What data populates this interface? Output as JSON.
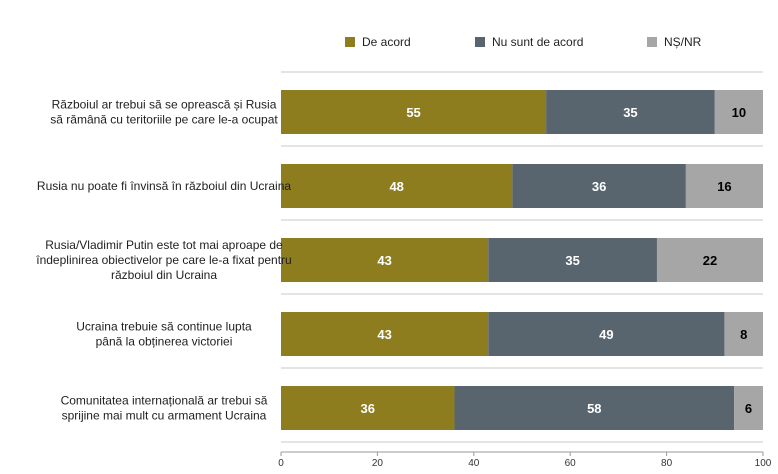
{
  "chart_data": {
    "type": "bar",
    "orientation": "horizontal",
    "stacked": true,
    "categories": [
      [
        "Războiul ar trebui să se oprească și Rusia",
        "să rămână cu teritoriile pe care le-a ocupat"
      ],
      [
        "Rusia nu poate fi învinsă în războiul din Ucraina"
      ],
      [
        "Rusia/Vladimir Putin este tot mai aproape de",
        "îndeplinirea obiectivelor pe care le-a fixat pentru",
        "războiul din Ucraina"
      ],
      [
        "Ucraina trebuie să continue lupta",
        "până la obținerea victoriei"
      ],
      [
        "Comunitatea internațională ar trebui să",
        "sprijine mai mult cu armament Ucraina"
      ]
    ],
    "series": [
      {
        "name": "De acord",
        "color": "#8d7d1e",
        "label_color": "#ffffff",
        "values": [
          55,
          48,
          43,
          43,
          36
        ]
      },
      {
        "name": "Nu sunt de acord",
        "color": "#58656f",
        "label_color": "#ffffff",
        "values": [
          35,
          36,
          35,
          49,
          58
        ]
      },
      {
        "name": "NȘ/NR",
        "color": "#a6a6a6",
        "label_color": "#000000",
        "values": [
          10,
          16,
          22,
          8,
          6
        ]
      }
    ],
    "xlim": [
      0,
      100
    ],
    "xticks": [
      0,
      20,
      40,
      60,
      80,
      100
    ],
    "legend_position": "top",
    "grid": "row separators"
  }
}
